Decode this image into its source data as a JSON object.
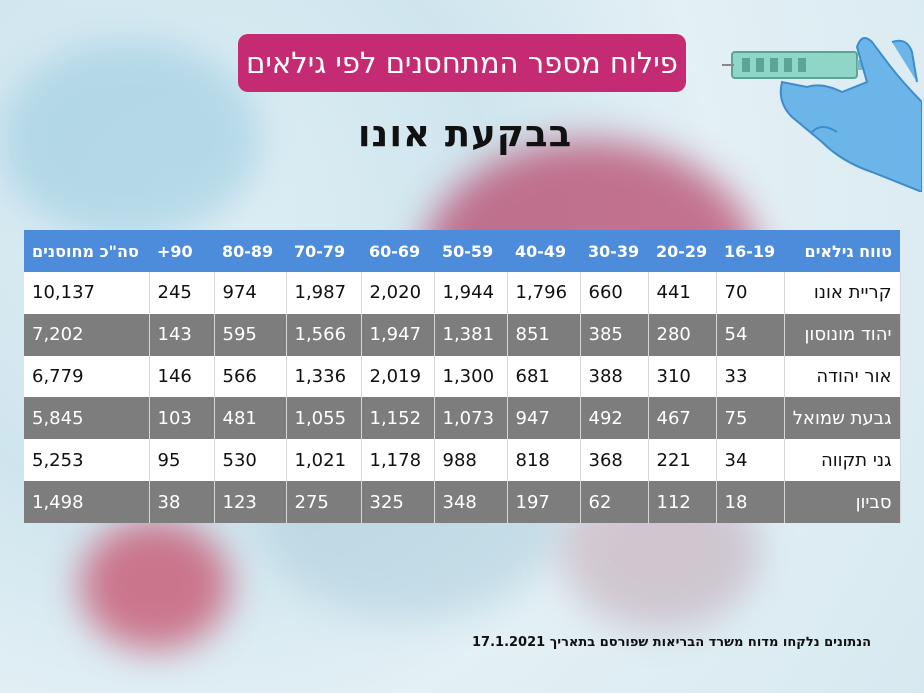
{
  "title": "פילוח מספר המתחסנים לפי גילאים",
  "subtitle": "בבקעת אונו",
  "table": {
    "headers": [
      "טווח גילאים",
      "16-19",
      "20-29",
      "30-39",
      "40-49",
      "50-59",
      "60-69",
      "70-79",
      "80-89",
      "90+",
      "סה\"כ מחוסנים"
    ],
    "rows": [
      [
        "קריית אונו",
        "70",
        "441",
        "660",
        "1,796",
        "1,944",
        "2,020",
        "1,987",
        "974",
        "245",
        "10,137"
      ],
      [
        "יהוד מונוסון",
        "54",
        "280",
        "385",
        "851",
        "1,381",
        "1,947",
        "1,566",
        "595",
        "143",
        "7,202"
      ],
      [
        "אור יהודה",
        "33",
        "310",
        "388",
        "681",
        "1,300",
        "2,019",
        "1,336",
        "566",
        "146",
        "6,779"
      ],
      [
        "גבעת שמואל",
        "75",
        "467",
        "492",
        "947",
        "1,073",
        "1,152",
        "1,055",
        "481",
        "103",
        "5,845"
      ],
      [
        "גני תקווה",
        "34",
        "221",
        "368",
        "818",
        "988",
        "1,178",
        "1,021",
        "530",
        "95",
        "5,253"
      ],
      [
        "סביון",
        "18",
        "112",
        "62",
        "197",
        "348",
        "325",
        "275",
        "123",
        "38",
        "1,498"
      ]
    ]
  },
  "footer": "הנתונים נלקחו מדוח משרד הבריאות שפורסם בתאריך 17.1.2021",
  "colors": {
    "title_bg": "#c52b72",
    "header_bg": "#4d8bdb",
    "stripe": "#7d7d7d"
  },
  "icons": [
    "syringe-icon",
    "gloved-hand-icon"
  ]
}
